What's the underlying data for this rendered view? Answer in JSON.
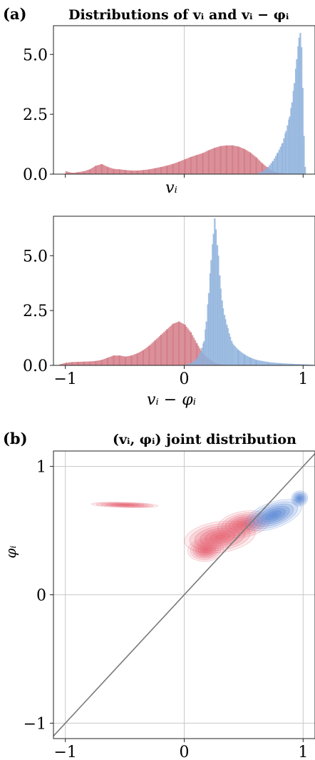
{
  "panel_a": {
    "letter": "(a)",
    "title": "Distributions of vᵢ and vᵢ − φᵢ"
  },
  "panel_b": {
    "letter": "(b)",
    "title": "(vᵢ, φᵢ) joint distribution"
  },
  "colors": {
    "red": "#d37b86",
    "blue": "#8db1dc",
    "overlap": "#8e6b8b",
    "grid": "#c8c8c8",
    "diag": "#7a7a7a"
  },
  "chart_data": [
    {
      "type": "bar",
      "subtype": "histogram",
      "xlabel": "vᵢ",
      "xlim": [
        -1.1,
        1.1
      ],
      "ylim": [
        0,
        6.2
      ],
      "yticks": [
        "0.0",
        "2.5",
        "5.0"
      ],
      "ytick_values": [
        0,
        2.5,
        5.0
      ],
      "xticks_shown": false,
      "grid_x_at": [
        0
      ],
      "series": [
        {
          "color": "red",
          "points": [
            [
              -1.0,
              0.12
            ],
            [
              -0.95,
              0.05
            ],
            [
              -0.9,
              0.08
            ],
            [
              -0.85,
              0.12
            ],
            [
              -0.8,
              0.2
            ],
            [
              -0.75,
              0.35
            ],
            [
              -0.7,
              0.42
            ],
            [
              -0.65,
              0.3
            ],
            [
              -0.6,
              0.22
            ],
            [
              -0.55,
              0.2
            ],
            [
              -0.5,
              0.17
            ],
            [
              -0.45,
              0.15
            ],
            [
              -0.4,
              0.15
            ],
            [
              -0.35,
              0.17
            ],
            [
              -0.3,
              0.2
            ],
            [
              -0.25,
              0.25
            ],
            [
              -0.2,
              0.3
            ],
            [
              -0.15,
              0.36
            ],
            [
              -0.1,
              0.43
            ],
            [
              -0.05,
              0.52
            ],
            [
              0.0,
              0.62
            ],
            [
              0.05,
              0.72
            ],
            [
              0.1,
              0.8
            ],
            [
              0.15,
              0.88
            ],
            [
              0.2,
              1.0
            ],
            [
              0.25,
              1.1
            ],
            [
              0.3,
              1.17
            ],
            [
              0.35,
              1.2
            ],
            [
              0.4,
              1.2
            ],
            [
              0.45,
              1.15
            ],
            [
              0.5,
              1.05
            ],
            [
              0.55,
              0.9
            ],
            [
              0.6,
              0.7
            ],
            [
              0.65,
              0.45
            ],
            [
              0.7,
              0.25
            ],
            [
              0.75,
              0.1
            ],
            [
              0.8,
              0.04
            ],
            [
              0.85,
              0.01
            ]
          ]
        },
        {
          "color": "blue",
          "points": [
            [
              0.6,
              0.02
            ],
            [
              0.65,
              0.1
            ],
            [
              0.7,
              0.3
            ],
            [
              0.74,
              0.55
            ],
            [
              0.78,
              0.9
            ],
            [
              0.82,
              1.3
            ],
            [
              0.85,
              1.8
            ],
            [
              0.88,
              2.4
            ],
            [
              0.9,
              3.0
            ],
            [
              0.92,
              3.8
            ],
            [
              0.94,
              4.8
            ],
            [
              0.96,
              5.7
            ],
            [
              0.97,
              5.9
            ],
            [
              0.98,
              5.3
            ],
            [
              0.99,
              3.6
            ],
            [
              1.0,
              1.6
            ],
            [
              1.01,
              0.3
            ],
            [
              1.02,
              0.05
            ]
          ]
        }
      ]
    },
    {
      "type": "bar",
      "subtype": "histogram",
      "xlabel": "vᵢ − φᵢ",
      "xlim": [
        -1.1,
        1.1
      ],
      "ylim": [
        0,
        6.8
      ],
      "yticks": [
        "0.0",
        "2.5",
        "5.0"
      ],
      "ytick_values": [
        0,
        2.5,
        5.0
      ],
      "xticks": [
        "−1",
        "0",
        "1"
      ],
      "xtick_values": [
        -1,
        0,
        1
      ],
      "grid_x_at": [
        0
      ],
      "series": [
        {
          "color": "red",
          "points": [
            [
              -1.05,
              0.05
            ],
            [
              -1.0,
              0.12
            ],
            [
              -0.95,
              0.15
            ],
            [
              -0.9,
              0.16
            ],
            [
              -0.85,
              0.17
            ],
            [
              -0.8,
              0.18
            ],
            [
              -0.75,
              0.2
            ],
            [
              -0.7,
              0.25
            ],
            [
              -0.65,
              0.35
            ],
            [
              -0.6,
              0.45
            ],
            [
              -0.55,
              0.45
            ],
            [
              -0.5,
              0.4
            ],
            [
              -0.45,
              0.45
            ],
            [
              -0.4,
              0.55
            ],
            [
              -0.35,
              0.7
            ],
            [
              -0.3,
              0.9
            ],
            [
              -0.25,
              1.15
            ],
            [
              -0.2,
              1.4
            ],
            [
              -0.15,
              1.65
            ],
            [
              -0.1,
              1.9
            ],
            [
              -0.05,
              2.0
            ],
            [
              0.0,
              1.85
            ],
            [
              0.05,
              1.5
            ],
            [
              0.1,
              1.0
            ],
            [
              0.15,
              0.55
            ],
            [
              0.2,
              0.3
            ],
            [
              0.25,
              0.12
            ],
            [
              0.3,
              0.05
            ],
            [
              0.35,
              0.02
            ]
          ]
        },
        {
          "color": "blue",
          "points": [
            [
              0.0,
              0.02
            ],
            [
              0.05,
              0.1
            ],
            [
              0.1,
              0.3
            ],
            [
              0.13,
              0.6
            ],
            [
              0.16,
              1.1
            ],
            [
              0.18,
              2.0
            ],
            [
              0.2,
              3.3
            ],
            [
              0.22,
              4.8
            ],
            [
              0.24,
              6.0
            ],
            [
              0.25,
              6.7
            ],
            [
              0.26,
              6.2
            ],
            [
              0.28,
              5.0
            ],
            [
              0.3,
              3.5
            ],
            [
              0.32,
              2.6
            ],
            [
              0.34,
              2.1
            ],
            [
              0.36,
              1.7
            ],
            [
              0.38,
              1.3
            ],
            [
              0.4,
              1.0
            ],
            [
              0.45,
              0.7
            ],
            [
              0.5,
              0.5
            ],
            [
              0.55,
              0.35
            ],
            [
              0.6,
              0.25
            ],
            [
              0.7,
              0.15
            ],
            [
              0.8,
              0.1
            ],
            [
              0.9,
              0.07
            ],
            [
              1.0,
              0.05
            ],
            [
              1.08,
              0.03
            ]
          ]
        }
      ]
    },
    {
      "type": "scatter",
      "subtype": "kde_contour",
      "xlabel": "vᵢ",
      "ylabel": "φᵢ",
      "xlim": [
        -1.1,
        1.1
      ],
      "ylim": [
        -1.12,
        1.12
      ],
      "xticks": [
        "−1",
        "0",
        "1"
      ],
      "xtick_values": [
        -1,
        0,
        1
      ],
      "yticks": [
        "−1",
        "0",
        "1"
      ],
      "ytick_values": [
        -1,
        0,
        1
      ],
      "grid": true,
      "reference_line": "y = x",
      "series": [
        {
          "color": "red",
          "blobs": [
            {
              "cx": -0.5,
              "cy": 0.7,
              "rx": 0.28,
              "ry": 0.02,
              "angle": -1.5
            },
            {
              "cx": 0.3,
              "cy": 0.45,
              "rx": 0.3,
              "ry": 0.12,
              "angle": 8
            },
            {
              "cx": 0.5,
              "cy": 0.55,
              "rx": 0.22,
              "ry": 0.1,
              "angle": 10
            },
            {
              "cx": 0.18,
              "cy": 0.35,
              "rx": 0.15,
              "ry": 0.09,
              "angle": 5
            }
          ]
        },
        {
          "color": "blue",
          "blobs": [
            {
              "cx": 0.97,
              "cy": 0.75,
              "rx": 0.07,
              "ry": 0.06,
              "angle": 20
            },
            {
              "cx": 0.75,
              "cy": 0.62,
              "rx": 0.25,
              "ry": 0.1,
              "angle": 20
            }
          ]
        }
      ]
    }
  ]
}
